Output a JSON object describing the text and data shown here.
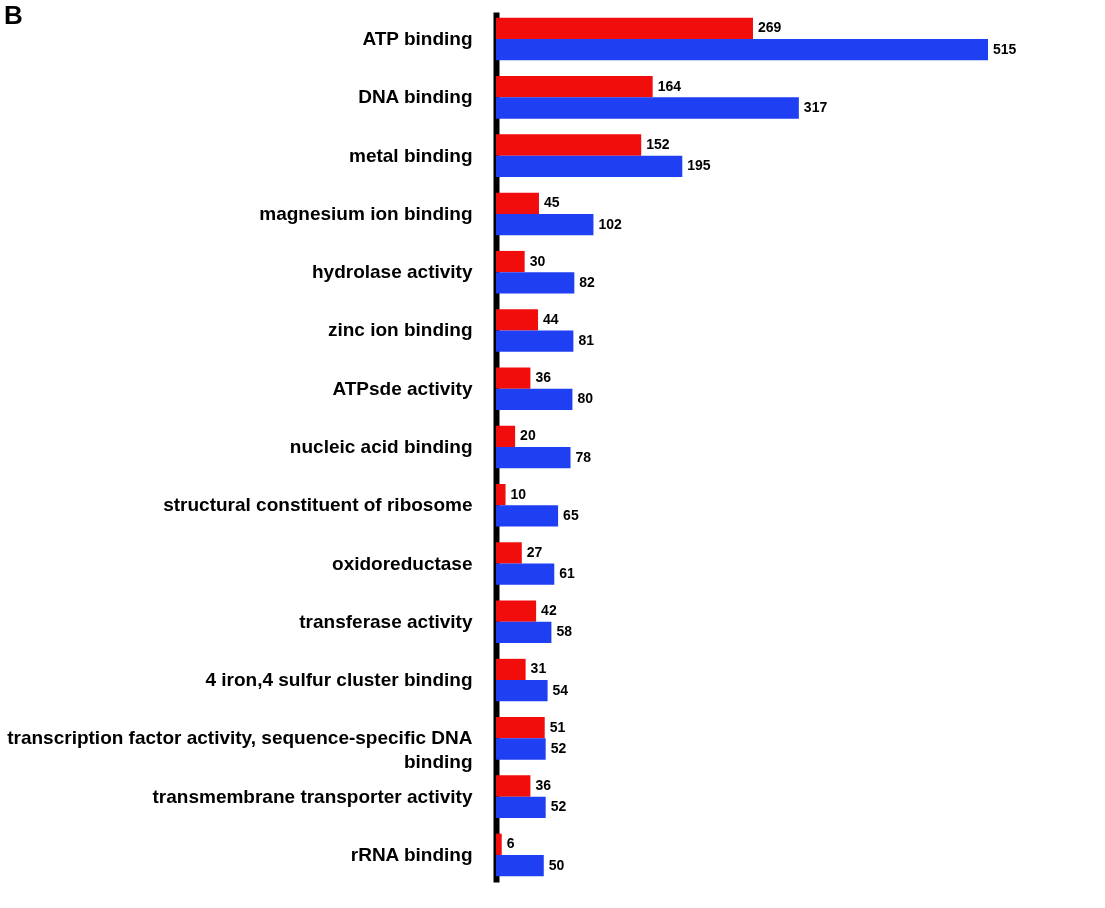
{
  "chart_data": {
    "type": "bar",
    "orientation": "horizontal",
    "categories": [
      "ATP binding",
      "DNA binding",
      "metal binding",
      "magnesium ion binding",
      "hydrolase activity",
      "zinc ion binding",
      "ATPsde activity",
      "nucleic acid binding",
      "structural constituent of ribosome",
      "oxidoreductase",
      "transferase activity",
      "4 iron,4 sulfur cluster binding",
      "transcription factor activity, sequence-specific DNA binding",
      "transmembrane transporter activity",
      "rRNA binding"
    ],
    "series": [
      {
        "color": "#f20d0d",
        "values": [
          269,
          164,
          152,
          45,
          30,
          44,
          36,
          20,
          10,
          27,
          42,
          31,
          51,
          36,
          6
        ]
      },
      {
        "color": "#1f3ff2",
        "values": [
          515,
          317,
          195,
          102,
          82,
          81,
          80,
          78,
          65,
          61,
          58,
          54,
          52,
          52,
          50
        ]
      }
    ],
    "data_labels": true,
    "legend": false,
    "annotations": [
      "B"
    ]
  }
}
